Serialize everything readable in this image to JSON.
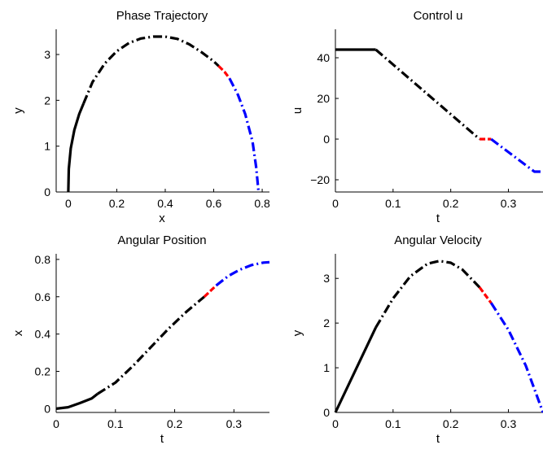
{
  "chart_data": [
    {
      "type": "line",
      "title": "Phase Trajectory",
      "xlabel": "x",
      "ylabel": "y",
      "xlim": [
        -0.05,
        0.83
      ],
      "ylim": [
        0,
        3.55
      ],
      "xticks": [
        0,
        0.2,
        0.4,
        0.6,
        0.8
      ],
      "yticks": [
        0,
        1,
        2,
        3
      ],
      "xtick_labels": [
        "0",
        "0.2",
        "0.4",
        "0.6",
        "0.8"
      ],
      "ytick_labels": [
        "0",
        "1",
        "2",
        "3"
      ],
      "series": [
        {
          "color": "#000000",
          "style": "solid",
          "x": [
            0,
            0.002,
            0.01,
            0.025,
            0.045,
            0.063
          ],
          "y": [
            0,
            0.5,
            0.95,
            1.35,
            1.7,
            1.93
          ]
        },
        {
          "color": "#000000",
          "style": "dashdot",
          "x": [
            0.063,
            0.1,
            0.15,
            0.2,
            0.25,
            0.3,
            0.35,
            0.4,
            0.45,
            0.5,
            0.55,
            0.6,
            0.62
          ],
          "y": [
            1.93,
            2.4,
            2.8,
            3.07,
            3.25,
            3.35,
            3.39,
            3.39,
            3.34,
            3.22,
            3.05,
            2.85,
            2.75
          ]
        },
        {
          "color": "#ff0000",
          "style": "dashed",
          "x": [
            0.62,
            0.645,
            0.665
          ],
          "y": [
            2.75,
            2.62,
            2.48
          ]
        },
        {
          "color": "#0000ff",
          "style": "dashdot",
          "x": [
            0.665,
            0.7,
            0.73,
            0.76,
            0.775,
            0.785
          ],
          "y": [
            2.48,
            2.12,
            1.7,
            1.1,
            0.55,
            0
          ]
        }
      ]
    },
    {
      "type": "line",
      "title": "Control u",
      "xlabel": "t",
      "ylabel": "u",
      "xlim": [
        0,
        0.36
      ],
      "ylim": [
        -26,
        54
      ],
      "xticks": [
        0,
        0.1,
        0.2,
        0.3
      ],
      "yticks": [
        -20,
        0,
        20,
        40
      ],
      "xtick_labels": [
        "0",
        "0.1",
        "0.2",
        "0.3"
      ],
      "ytick_labels": [
        "−20",
        "0",
        "20",
        "40"
      ],
      "series": [
        {
          "color": "#000000",
          "style": "solid",
          "x": [
            0,
            0.07
          ],
          "y": [
            44,
            44
          ]
        },
        {
          "color": "#000000",
          "style": "dashdot",
          "x": [
            0.07,
            0.25
          ],
          "y": [
            44,
            0
          ]
        },
        {
          "color": "#ff0000",
          "style": "dashed",
          "x": [
            0.25,
            0.27
          ],
          "y": [
            0,
            0
          ]
        },
        {
          "color": "#0000ff",
          "style": "dashdot",
          "x": [
            0.27,
            0.345,
            0.36
          ],
          "y": [
            0,
            -16,
            -16
          ]
        }
      ]
    },
    {
      "type": "line",
      "title": "Angular Position",
      "xlabel": "t",
      "ylabel": "x",
      "xlim": [
        0,
        0.36
      ],
      "ylim": [
        -0.02,
        0.83
      ],
      "xticks": [
        0,
        0.1,
        0.2,
        0.3
      ],
      "yticks": [
        0,
        0.2,
        0.4,
        0.6,
        0.8
      ],
      "xtick_labels": [
        "0",
        "0.1",
        "0.2",
        "0.3"
      ],
      "ytick_labels": [
        "0",
        "0.2",
        "0.4",
        "0.6",
        "0.8"
      ],
      "series": [
        {
          "color": "#000000",
          "style": "solid",
          "x": [
            0,
            0.02,
            0.04,
            0.06,
            0.07
          ],
          "y": [
            0,
            0.008,
            0.03,
            0.055,
            0.08
          ]
        },
        {
          "color": "#000000",
          "style": "dashdot",
          "x": [
            0.07,
            0.1,
            0.13,
            0.16,
            0.19,
            0.22,
            0.25
          ],
          "y": [
            0.08,
            0.14,
            0.23,
            0.33,
            0.43,
            0.52,
            0.6
          ]
        },
        {
          "color": "#ff0000",
          "style": "dashed",
          "x": [
            0.25,
            0.26,
            0.27
          ],
          "y": [
            0.6,
            0.63,
            0.66
          ]
        },
        {
          "color": "#0000ff",
          "style": "dashdot",
          "x": [
            0.27,
            0.29,
            0.31,
            0.33,
            0.35,
            0.36
          ],
          "y": [
            0.66,
            0.71,
            0.745,
            0.77,
            0.783,
            0.785
          ]
        }
      ]
    },
    {
      "type": "line",
      "title": "Angular Velocity",
      "xlabel": "t",
      "ylabel": "y",
      "xlim": [
        0,
        0.36
      ],
      "ylim": [
        0,
        3.55
      ],
      "xticks": [
        0,
        0.1,
        0.2,
        0.3
      ],
      "yticks": [
        0,
        1,
        2,
        3
      ],
      "xtick_labels": [
        "0",
        "0.1",
        "0.2",
        "0.3"
      ],
      "ytick_labels": [
        "0",
        "1",
        "2",
        "3"
      ],
      "series": [
        {
          "color": "#000000",
          "style": "solid",
          "x": [
            0,
            0.07
          ],
          "y": [
            0,
            1.9
          ]
        },
        {
          "color": "#000000",
          "style": "dashdot",
          "x": [
            0.07,
            0.1,
            0.13,
            0.16,
            0.18,
            0.2,
            0.22,
            0.25
          ],
          "y": [
            1.9,
            2.55,
            3.05,
            3.33,
            3.39,
            3.35,
            3.2,
            2.8
          ]
        },
        {
          "color": "#ff0000",
          "style": "dashed",
          "x": [
            0.25,
            0.27
          ],
          "y": [
            2.8,
            2.45
          ]
        },
        {
          "color": "#0000ff",
          "style": "dashdot",
          "x": [
            0.27,
            0.3,
            0.33,
            0.36
          ],
          "y": [
            2.45,
            1.85,
            1.05,
            0
          ]
        }
      ]
    }
  ]
}
